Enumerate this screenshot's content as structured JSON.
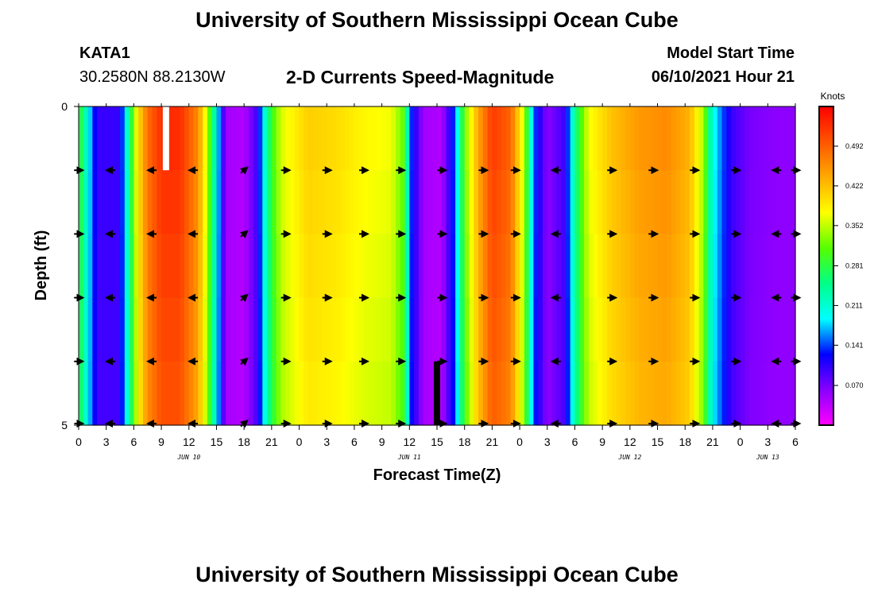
{
  "header": {
    "title": "University of Southern Mississippi Ocean Cube",
    "station_id": "KATA1",
    "station_coords": "30.2580N  88.2130W",
    "subtitle": "2-D Currents Speed-Magnitude",
    "start_label": "Model Start Time",
    "start_value": "06/10/2021 Hour 21"
  },
  "footer": {
    "title": "University of Southern Mississippi Ocean Cube"
  },
  "chart_data": {
    "type": "heatmap",
    "xlabel": "Forecast Time(Z)",
    "ylabel": "Depth (ft)",
    "x_hours_range": [
      0,
      78
    ],
    "y_range": [
      0,
      5
    ],
    "y_ticks": [
      "0",
      "5"
    ],
    "x_tick_labels": [
      "0",
      "3",
      "6",
      "9",
      "12",
      "15",
      "18",
      "21",
      "0",
      "3",
      "6",
      "9",
      "12",
      "15",
      "18",
      "21",
      "0",
      "3",
      "6",
      "9",
      "12",
      "15",
      "18",
      "21",
      "0",
      "3",
      "6"
    ],
    "date_labels": [
      {
        "hour": 12,
        "text": "JUN 10"
      },
      {
        "hour": 36,
        "text": "JUN 11"
      },
      {
        "hour": 60,
        "text": "JUN 12"
      },
      {
        "hour": 75,
        "text": "JUN 13"
      }
    ],
    "colorbar": {
      "unit": "Knots",
      "min": 0.0,
      "max": 0.562,
      "tick_labels": [
        "0.492",
        "0.422",
        "0.352",
        "0.281",
        "0.211",
        "0.141",
        "0.070"
      ],
      "tick_values": [
        0.492,
        0.422,
        0.352,
        0.281,
        0.211,
        0.141,
        0.07
      ],
      "colors": [
        "#ff00ff",
        "#8800ff",
        "#0000ff",
        "#00ffff",
        "#00ff88",
        "#55ff00",
        "#ffff00",
        "#ffaa00",
        "#ff5500",
        "#ff0000"
      ]
    },
    "depth_levels": [
      0,
      1,
      2,
      3,
      4,
      5
    ],
    "arrow_hours": [
      0,
      3.5,
      8,
      12.5,
      18,
      22.5,
      27,
      31,
      35,
      39.5,
      44,
      47.5,
      52,
      58,
      62.5,
      67,
      71.5,
      76,
      78
    ],
    "arrow_directions": [
      "E",
      "W",
      "W",
      "W",
      "NE",
      "E",
      "E",
      "E",
      "E",
      "E",
      "E",
      "E",
      "W",
      "E",
      "E",
      "E",
      "E",
      "W",
      "E"
    ],
    "speed_profile": [
      {
        "hour": 0,
        "speed": 0.3
      },
      {
        "hour": 1,
        "speed": 0.2
      },
      {
        "hour": 2,
        "speed": 0.1
      },
      {
        "hour": 4.5,
        "speed": 0.1
      },
      {
        "hour": 5.5,
        "speed": 0.25
      },
      {
        "hour": 6.5,
        "speed": 0.4
      },
      {
        "hour": 7.5,
        "speed": 0.48
      },
      {
        "hour": 9,
        "speed": 0.53
      },
      {
        "hour": 11,
        "speed": 0.53
      },
      {
        "hour": 13,
        "speed": 0.46
      },
      {
        "hour": 14,
        "speed": 0.35
      },
      {
        "hour": 15,
        "speed": 0.2
      },
      {
        "hour": 16,
        "speed": 0.05
      },
      {
        "hour": 18,
        "speed": 0.04
      },
      {
        "hour": 19.5,
        "speed": 0.1
      },
      {
        "hour": 20.5,
        "speed": 0.25
      },
      {
        "hour": 22,
        "speed": 0.36
      },
      {
        "hour": 25,
        "speed": 0.41
      },
      {
        "hour": 28,
        "speed": 0.4
      },
      {
        "hour": 31,
        "speed": 0.38
      },
      {
        "hour": 34,
        "speed": 0.37
      },
      {
        "hour": 35.5,
        "speed": 0.31
      },
      {
        "hour": 36,
        "speed": 0.15
      },
      {
        "hour": 37.5,
        "speed": 0.05
      },
      {
        "hour": 39.5,
        "speed": 0.04
      },
      {
        "hour": 41,
        "speed": 0.15
      },
      {
        "hour": 42,
        "speed": 0.32
      },
      {
        "hour": 43.5,
        "speed": 0.44
      },
      {
        "hour": 45,
        "speed": 0.52
      },
      {
        "hour": 47,
        "speed": 0.49
      },
      {
        "hour": 48.5,
        "speed": 0.35
      },
      {
        "hour": 49.5,
        "speed": 0.15
      },
      {
        "hour": 51,
        "speed": 0.06
      },
      {
        "hour": 53,
        "speed": 0.1
      },
      {
        "hour": 54,
        "speed": 0.25
      },
      {
        "hour": 55.5,
        "speed": 0.37
      },
      {
        "hour": 58,
        "speed": 0.42
      },
      {
        "hour": 61,
        "speed": 0.45
      },
      {
        "hour": 64,
        "speed": 0.46
      },
      {
        "hour": 66.5,
        "speed": 0.43
      },
      {
        "hour": 68,
        "speed": 0.34
      },
      {
        "hour": 69,
        "speed": 0.2
      },
      {
        "hour": 71,
        "speed": 0.1
      },
      {
        "hour": 73,
        "speed": 0.07
      },
      {
        "hour": 76,
        "speed": 0.06
      },
      {
        "hour": 78,
        "speed": 0.06
      }
    ],
    "markers": [
      {
        "label": "model-start",
        "hour": 9.5,
        "depth_from": 0,
        "depth_to": 1,
        "color": "#ffffff"
      },
      {
        "label": "now",
        "hour": 39,
        "depth_from": 4,
        "depth_to": 5,
        "color": "#000000"
      }
    ]
  }
}
